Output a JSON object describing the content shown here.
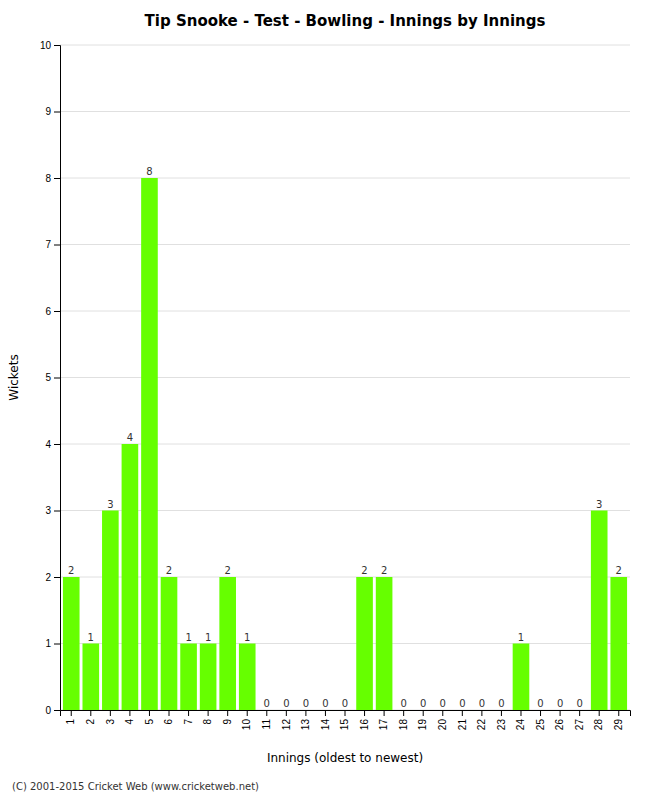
{
  "chart_data": {
    "type": "bar",
    "title": "Tip Snooke - Test - Bowling - Innings by Innings",
    "xlabel": "Innings (oldest to newest)",
    "ylabel": "Wickets",
    "categories": [
      1,
      2,
      3,
      4,
      5,
      6,
      7,
      8,
      9,
      10,
      11,
      12,
      13,
      14,
      15,
      16,
      17,
      18,
      19,
      20,
      21,
      22,
      23,
      24,
      25,
      26,
      27,
      28,
      29
    ],
    "values": [
      2,
      1,
      3,
      4,
      8,
      2,
      1,
      1,
      2,
      1,
      0,
      0,
      0,
      0,
      0,
      2,
      2,
      0,
      0,
      0,
      0,
      0,
      0,
      1,
      0,
      0,
      0,
      3,
      2
    ],
    "color": "#66ff00",
    "ylim": [
      0,
      10
    ],
    "yticks": [
      0,
      1,
      2,
      3,
      4,
      5,
      6,
      7,
      8,
      9,
      10
    ],
    "grid": true,
    "data_labels": true,
    "annotations": [
      "(C) 2001-2015 Cricket Web (www.cricketweb.net)"
    ]
  }
}
